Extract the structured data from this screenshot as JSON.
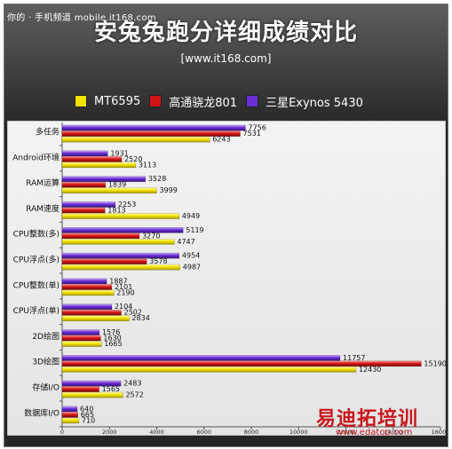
{
  "watermark_top": "你的 · 手机频道 mobile.it168.com",
  "title": "安兔兔跑分详细成绩对比",
  "subtitle": "[www.it168.com]",
  "watermark_bottom": "易迪拓培训",
  "watermark_bottom_url": "www.edatop.com",
  "colors": {
    "series1": "#f1e200",
    "series2": "#d01515",
    "series3": "#6a2ed6",
    "panel": "#e9e9e9"
  },
  "chart_data": {
    "type": "bar",
    "orientation": "horizontal",
    "categories": [
      "多任务",
      "Android环境",
      "RAM运算",
      "RAM速度",
      "CPU整数(多)",
      "CPU浮点(多)",
      "CPU整数(单)",
      "CPU浮点(单)",
      "2D绘图",
      "3D绘图",
      "存储I/O",
      "数据库I/O"
    ],
    "series": [
      {
        "name": "MT6595",
        "values": [
          6243,
          3113,
          3999,
          4949,
          4747,
          4987,
          2190,
          2834,
          1665,
          12430,
          2572,
          710
        ]
      },
      {
        "name": "高通骁龙801",
        "values": [
          7531,
          2520,
          1839,
          1813,
          3270,
          3578,
          2101,
          2502,
          1630,
          15190,
          1565,
          665
        ]
      },
      {
        "name": "三星Exynos 5430",
        "values": [
          7756,
          1931,
          3528,
          2253,
          5119,
          4954,
          1887,
          2104,
          1576,
          11757,
          2483,
          640
        ]
      }
    ],
    "xlim": [
      0,
      16000
    ],
    "xticks": [
      0,
      2000,
      4000,
      6000,
      8000,
      10000,
      12000,
      14000,
      16000
    ],
    "grid": false,
    "legend": "top"
  }
}
